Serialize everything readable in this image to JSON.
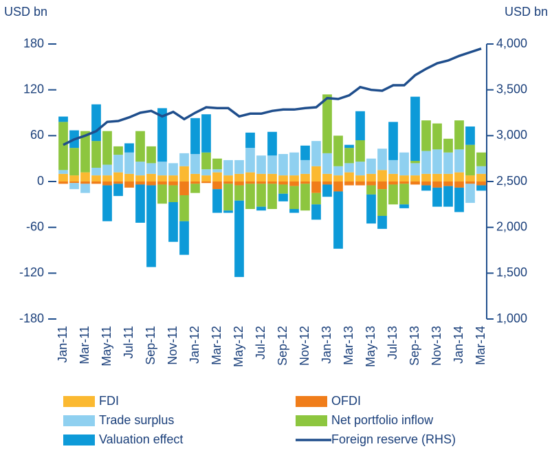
{
  "chart_data": {
    "type": "bar",
    "y_label": "USD bn",
    "y2_label": "USD bn",
    "categories": [
      "Jan-11",
      null,
      "Mar-11",
      null,
      "May-11",
      null,
      "Jul-11",
      null,
      "Sep-11",
      null,
      "Nov-11",
      null,
      "Jan-12",
      null,
      "Mar-12",
      null,
      "May-12",
      null,
      "Jul-12",
      null,
      "Sep-12",
      null,
      "Nov-12",
      null,
      "Jan-13",
      null,
      "Mar-13",
      null,
      "May-13",
      null,
      "Jul-13",
      null,
      "Sep-13",
      null,
      "Nov-13",
      null,
      "Jan-14",
      null,
      "Mar-14"
    ],
    "series": [
      {
        "name": "FDI",
        "color": "#fbb931",
        "values": [
          10,
          8,
          12,
          8,
          8,
          12,
          10,
          8,
          10,
          8,
          8,
          20,
          10,
          8,
          12,
          8,
          10,
          12,
          10,
          10,
          8,
          8,
          10,
          20,
          10,
          8,
          12,
          8,
          10,
          15,
          10,
          8,
          8,
          10,
          10,
          10,
          12,
          8,
          10
        ]
      },
      {
        "name": "OFDI",
        "color": "#f07d1a",
        "values": [
          -3,
          -2,
          -3,
          -3,
          -5,
          -3,
          -8,
          -4,
          -5,
          -4,
          -5,
          -18,
          -3,
          -2,
          -10,
          -3,
          -5,
          -3,
          -3,
          -3,
          -4,
          -6,
          -3,
          -15,
          -4,
          -13,
          -5,
          -5,
          -5,
          -10,
          -4,
          -3,
          -4,
          -5,
          -8,
          -6,
          -8,
          -3,
          -5
        ]
      },
      {
        "name": "Trade surplus",
        "color": "#8fd0f0",
        "values": [
          5,
          -8,
          -12,
          10,
          14,
          23,
          28,
          18,
          14,
          18,
          16,
          17,
          26,
          8,
          4,
          20,
          18,
          32,
          24,
          24,
          28,
          30,
          18,
          33,
          27,
          12,
          12,
          18,
          20,
          28,
          18,
          30,
          16,
          30,
          32,
          28,
          30,
          -25,
          10
        ]
      },
      {
        "name": "Net portfolio inflow",
        "color": "#8dc63f",
        "values": [
          63,
          36,
          54,
          35,
          44,
          11,
          0,
          40,
          22,
          -25,
          -22,
          -34,
          -12,
          22,
          14,
          -35,
          -20,
          -33,
          -30,
          -33,
          -12,
          -30,
          -35,
          -15,
          77,
          40,
          20,
          28,
          -12,
          -35,
          -26,
          -27,
          3,
          40,
          34,
          18,
          38,
          40,
          18
        ]
      },
      {
        "name": "Valuation effect",
        "color": "#0d9ad8",
        "values": [
          7,
          23,
          0,
          48,
          -47,
          -16,
          12,
          -50,
          -107,
          70,
          -52,
          -44,
          47,
          50,
          -31,
          -3,
          -100,
          20,
          -5,
          31,
          -10,
          -5,
          19,
          -20,
          -16,
          -75,
          4,
          38,
          -38,
          -17,
          50,
          -5,
          84,
          -7,
          -25,
          -27,
          -32,
          24,
          -7
        ]
      },
      {
        "name": "Foreign reserve (RHS)",
        "color": "#1f4e8c",
        "type": "line",
        "axis": "y2",
        "values": [
          2900,
          2960,
          3000,
          3050,
          3150,
          3160,
          3200,
          3250,
          3270,
          3210,
          3260,
          3180,
          3250,
          3310,
          3300,
          3300,
          3210,
          3240,
          3240,
          3270,
          3285,
          3285,
          3300,
          3310,
          3410,
          3400,
          3440,
          3530,
          3500,
          3490,
          3550,
          3550,
          3660,
          3730,
          3790,
          3820,
          3870,
          3910,
          3950
        ]
      }
    ],
    "ylim": [
      -180,
      180
    ],
    "yticks": [
      180,
      120,
      60,
      0,
      -60,
      -120,
      -180
    ],
    "y2lim": [
      1000,
      4000
    ],
    "y2ticks": [
      {
        "value": 4000,
        "label": "4,000"
      },
      {
        "value": 3500,
        "label": "3,500"
      },
      {
        "value": 3000,
        "label": "3,000"
      },
      {
        "value": 2500,
        "label": "2,500"
      },
      {
        "value": 2000,
        "label": "2,000"
      },
      {
        "value": 1500,
        "label": "1,500"
      },
      {
        "value": 1000,
        "label": "1,000"
      }
    ],
    "stacked": true
  }
}
